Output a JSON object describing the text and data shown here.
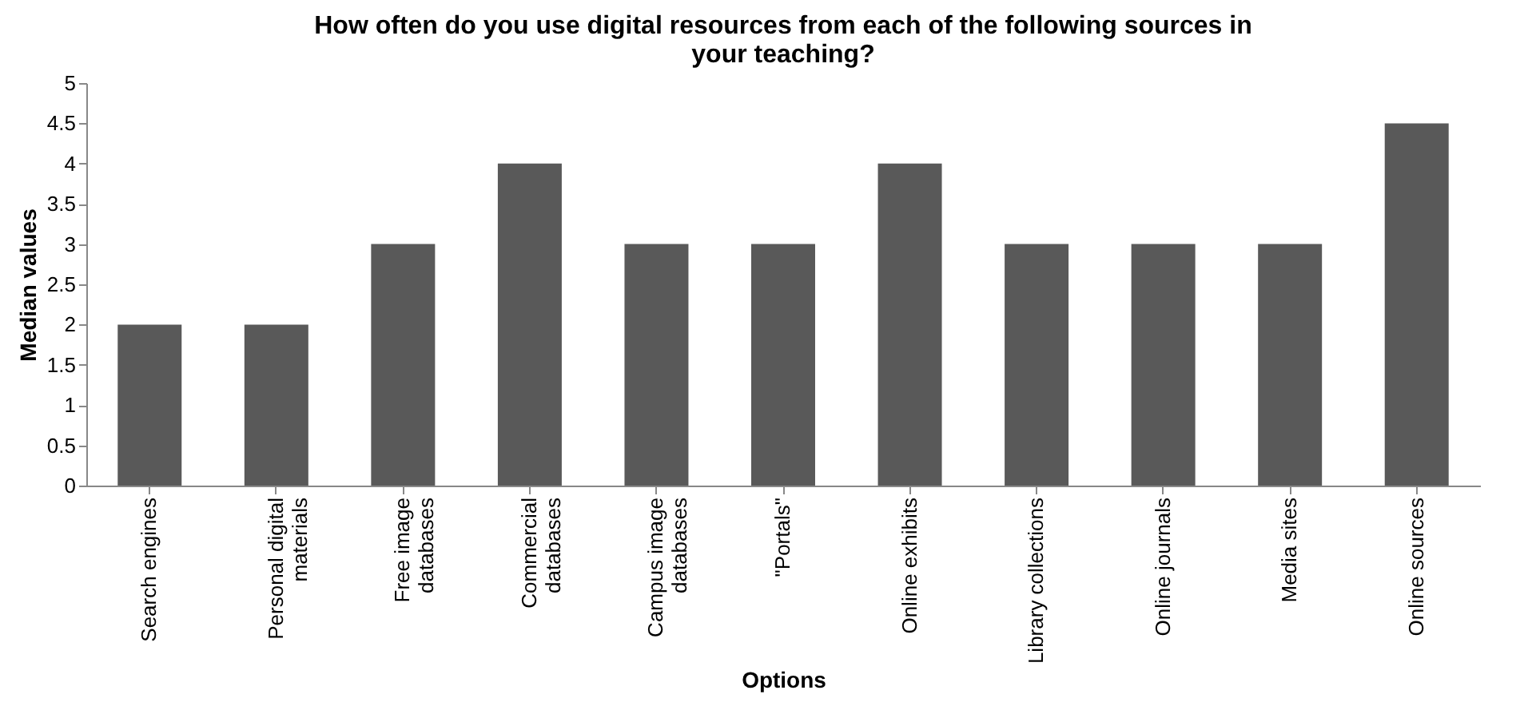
{
  "chart_data": {
    "type": "bar",
    "title": "How often do you use digital resources from each of the following sources in your teaching?",
    "xlabel": "Options",
    "ylabel": "Median values",
    "categories": [
      "Search engines",
      "Personal digital materials",
      "Free image databases",
      "Commercial databases",
      "Campus image databases",
      "\"Portals\"",
      "Online exhibits",
      "Library collections",
      "Online journals",
      "Media sites",
      "Online sources"
    ],
    "values": [
      2,
      2,
      3,
      4,
      3,
      3,
      4,
      3,
      3,
      3,
      4.5
    ],
    "color": "#595959",
    "ylim": [
      0,
      5
    ],
    "yticks": [
      0,
      0.5,
      1,
      1.5,
      2,
      2.5,
      3,
      3.5,
      4,
      4.5,
      5
    ],
    "grid": false
  }
}
